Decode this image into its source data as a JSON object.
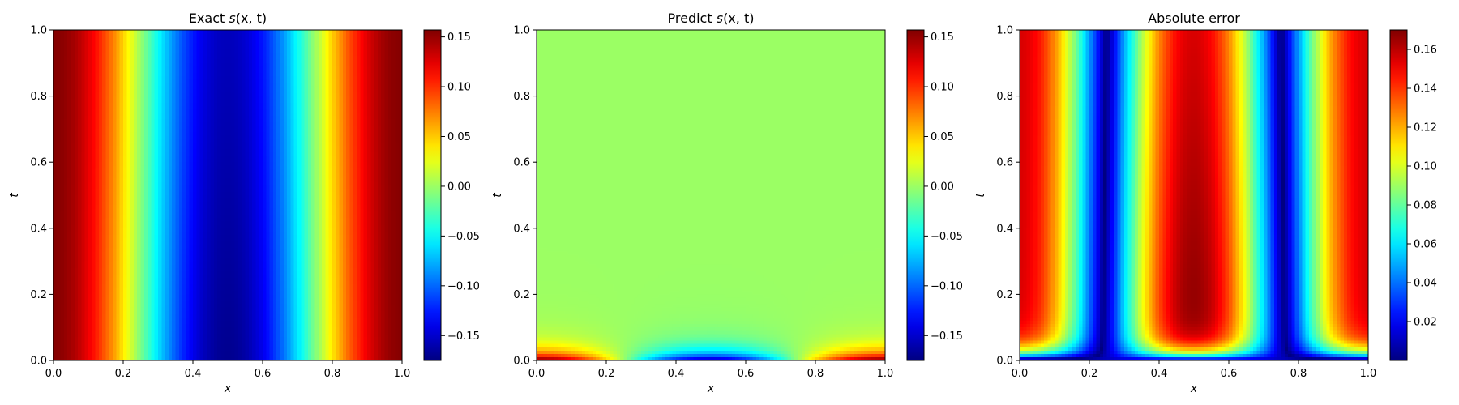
{
  "chart_data": [
    {
      "type": "heatmap",
      "title": "Exact s(x, t)",
      "title_parts": {
        "prefix": "Exact ",
        "func": "s",
        "args": "(x, t)"
      },
      "xlabel": "x",
      "ylabel": "t",
      "xlim": [
        0.0,
        1.0
      ],
      "ylim": [
        0.0,
        1.0
      ],
      "xticks": [
        "0.0",
        "0.2",
        "0.4",
        "0.6",
        "0.8",
        "1.0"
      ],
      "yticks": [
        "0.0",
        "0.2",
        "0.4",
        "0.6",
        "0.8",
        "1.0"
      ],
      "colormap": "jet",
      "colorbar": {
        "min": -0.175,
        "max": 0.157,
        "ticks": [
          0.15,
          0.1,
          0.05,
          0.0,
          -0.05,
          -0.1,
          -0.15
        ],
        "tick_labels": [
          "0.15",
          "0.10",
          "0.05",
          "0.00",
          "−0.05",
          "−0.10",
          "−0.15"
        ]
      },
      "field": {
        "kind": "exact",
        "description_values": {
          "x0": 0.155,
          "x0.3": -0.175,
          "x1": 0.157
        }
      }
    },
    {
      "type": "heatmap",
      "title": "Predict s(x, t)",
      "title_parts": {
        "prefix": "Predict ",
        "func": "s",
        "args": "(x, t)"
      },
      "xlabel": "x",
      "ylabel": "t",
      "xlim": [
        0.0,
        1.0
      ],
      "ylim": [
        0.0,
        1.0
      ],
      "xticks": [
        "0.0",
        "0.2",
        "0.4",
        "0.6",
        "0.8",
        "1.0"
      ],
      "yticks": [
        "0.0",
        "0.2",
        "0.4",
        "0.6",
        "0.8",
        "1.0"
      ],
      "colormap": "jet",
      "colorbar": {
        "min": -0.175,
        "max": 0.157,
        "ticks": [
          0.15,
          0.1,
          0.05,
          0.0,
          -0.05,
          -0.1,
          -0.15
        ],
        "tick_labels": [
          "0.15",
          "0.10",
          "0.05",
          "0.00",
          "−0.05",
          "−0.10",
          "−0.15"
        ]
      },
      "field": {
        "kind": "predict",
        "description_values": {
          "bulk": 0.0
        }
      }
    },
    {
      "type": "heatmap",
      "title": "Absolute error",
      "title_parts": {
        "prefix": "Absolute error",
        "func": "",
        "args": ""
      },
      "xlabel": "x",
      "ylabel": "t",
      "xlim": [
        0.0,
        1.0
      ],
      "ylim": [
        0.0,
        1.0
      ],
      "xticks": [
        "0.0",
        "0.2",
        "0.4",
        "0.6",
        "0.8",
        "1.0"
      ],
      "yticks": [
        "0.0",
        "0.2",
        "0.4",
        "0.6",
        "0.8",
        "1.0"
      ],
      "colormap": "jet",
      "colorbar": {
        "min": 0.0,
        "max": 0.17,
        "ticks": [
          0.16,
          0.14,
          0.12,
          0.1,
          0.08,
          0.06,
          0.04,
          0.02
        ],
        "tick_labels": [
          "0.16",
          "0.14",
          "0.12",
          "0.10",
          "0.08",
          "0.06",
          "0.04",
          "0.02"
        ]
      },
      "field": {
        "kind": "error",
        "description_values": {
          "max": 0.17,
          "min": 0.0
        }
      }
    }
  ]
}
